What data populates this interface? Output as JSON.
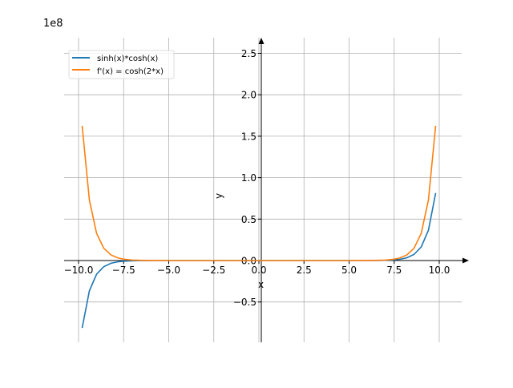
{
  "chart_data": {
    "type": "line",
    "title": "",
    "xlabel": "x",
    "ylabel": "y",
    "y_offset_label": "1e8",
    "xlim": [
      -11,
      11
    ],
    "ylim": [
      -0.97,
      2.7
    ],
    "grid": true,
    "legend_position": "top-left",
    "x_ticks": [
      -10.0,
      -7.5,
      -5.0,
      -2.5,
      0.0,
      2.5,
      5.0,
      7.5,
      10.0
    ],
    "x_tick_labels": [
      "−10.0",
      "−7.5",
      "−5.0",
      "−2.5",
      "0.0",
      "2.5",
      "5.0",
      "7.5",
      "10.0"
    ],
    "y_ticks": [
      -0.5,
      0.0,
      0.5,
      1.0,
      1.5,
      2.0,
      2.5
    ],
    "y_tick_labels": [
      "−0.5",
      "0.0",
      "0.5",
      "1.0",
      "1.5",
      "2.0",
      "2.5"
    ],
    "x": [
      -9.8,
      -9.4,
      -9.0,
      -8.6,
      -8.2,
      -7.8,
      -7.4,
      -7.0,
      -6.6,
      -6.2,
      -5.8,
      -5.0,
      -4.0,
      -2.0,
      0.0,
      2.0,
      4.0,
      5.0,
      5.8,
      6.2,
      6.6,
      7.0,
      7.4,
      7.8,
      8.2,
      8.6,
      9.0,
      9.4,
      9.8
    ],
    "series": [
      {
        "name": "sinh(x)*cosh(x)",
        "color": "#1f77b4",
        "values": [
          -0.81304,
          -0.36532,
          -0.16415,
          -0.07376,
          -0.03314,
          -0.01489,
          -0.00669,
          -0.00301,
          -0.00135,
          -0.00061,
          -0.00027,
          0,
          0,
          0,
          0,
          0,
          0,
          0,
          0.00027,
          0.00061,
          0.00135,
          0.00301,
          0.00669,
          0.01489,
          0.03314,
          0.07376,
          0.16415,
          0.36532,
          0.81304
        ]
      },
      {
        "name": "f'(x) = cosh(2*x)",
        "color": "#ff7f0e",
        "values": [
          1.62608,
          0.73064,
          0.3283,
          0.14752,
          0.06628,
          0.02978,
          0.01338,
          0.00602,
          0.0027,
          0.00122,
          0.00055,
          0,
          0,
          0,
          0,
          0,
          0,
          0,
          0.00055,
          0.00122,
          0.0027,
          0.00602,
          0.01338,
          0.02978,
          0.06628,
          0.14752,
          0.3283,
          0.73064,
          1.62608
        ]
      }
    ]
  }
}
